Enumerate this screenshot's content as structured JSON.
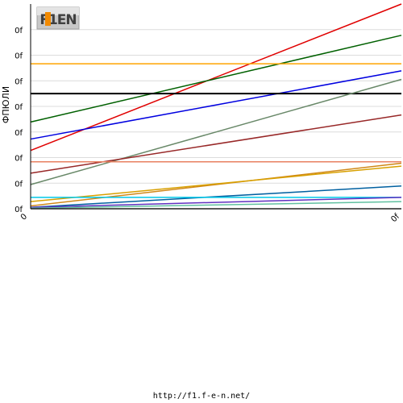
{
  "logo": {
    "text": "F1EN",
    "accent": "#f28a00"
  },
  "footer": {
    "url": "http://f1.f-e-n.net/"
  },
  "chart_data": {
    "type": "line",
    "title": "",
    "ylabel": "ФПЮЛИ",
    "xlabel": "",
    "x": [
      0,
      1
    ],
    "x_tick_labels": [
      "0",
      "0f"
    ],
    "y_tick_labels": [
      "0f",
      "0f",
      "0f",
      "0f",
      "0f",
      "0f",
      "0f",
      "0f"
    ],
    "ylim": [
      0,
      7.2
    ],
    "grid": true,
    "series": [
      {
        "color": "#e00000",
        "values": [
          2.05,
          7.2
        ]
      },
      {
        "color": "#006000",
        "values": [
          3.05,
          6.1
        ]
      },
      {
        "color": "#ffa500",
        "values": [
          5.1,
          5.1
        ]
      },
      {
        "color": "#0000e0",
        "values": [
          2.45,
          4.85
        ]
      },
      {
        "color": "#000000",
        "values": [
          4.05,
          4.05
        ]
      },
      {
        "color": "#688868",
        "values": [
          0.85,
          4.55
        ]
      },
      {
        "color": "#982828",
        "values": [
          1.25,
          3.3
        ]
      },
      {
        "color": "#e88060",
        "values": [
          1.65,
          1.65
        ]
      },
      {
        "color": "#d08818",
        "values": [
          0.1,
          1.6
        ]
      },
      {
        "color": "#d8a000",
        "values": [
          0.25,
          1.5
        ]
      },
      {
        "color": "#0060a0",
        "values": [
          0.05,
          0.8
        ]
      },
      {
        "color": "#00c8e8",
        "values": [
          0.4,
          0.4
        ]
      },
      {
        "color": "#6030c0",
        "values": [
          0.05,
          0.4
        ]
      },
      {
        "color": "#60c0a0",
        "values": [
          0.02,
          0.25
        ]
      },
      {
        "color": "#606060",
        "values": [
          0.0,
          0.0
        ]
      }
    ]
  }
}
